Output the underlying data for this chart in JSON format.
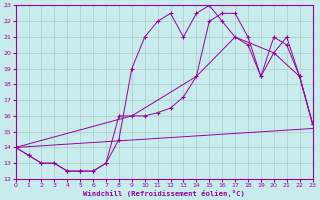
{
  "xlabel": "Windchill (Refroidissement éolien,°C)",
  "bg_color": "#c8ecec",
  "line_color": "#990099",
  "grid_color": "#aacccc",
  "xmin": 0,
  "xmax": 23,
  "ymin": 12,
  "ymax": 23,
  "line1_x": [
    0,
    1,
    2,
    3,
    4,
    5,
    6,
    7,
    8,
    9,
    10,
    11,
    12,
    13,
    14,
    15,
    16,
    17,
    18,
    19,
    20,
    21,
    22,
    23
  ],
  "line1_y": [
    14.0,
    13.5,
    13.0,
    13.0,
    12.5,
    12.5,
    12.5,
    13.0,
    14.5,
    19.0,
    21.0,
    22.0,
    22.5,
    21.0,
    22.5,
    23.0,
    22.0,
    21.0,
    20.5,
    18.5,
    21.0,
    20.5,
    18.5,
    15.5
  ],
  "line2_x": [
    0,
    1,
    2,
    3,
    4,
    5,
    6,
    7,
    8,
    9,
    10,
    11,
    12,
    13,
    14,
    15,
    16,
    17,
    18,
    19,
    20,
    21,
    22,
    23
  ],
  "line2_y": [
    14.0,
    13.5,
    13.0,
    13.0,
    12.5,
    12.5,
    12.5,
    13.0,
    16.0,
    16.0,
    16.0,
    16.2,
    16.5,
    17.2,
    18.5,
    22.0,
    22.5,
    22.5,
    21.0,
    18.5,
    20.0,
    21.0,
    18.5,
    15.5
  ],
  "line3_x": [
    0,
    9,
    14,
    17,
    20,
    22,
    23
  ],
  "line3_y": [
    14.0,
    16.0,
    18.5,
    21.0,
    20.0,
    18.5,
    15.5
  ],
  "line4_x": [
    0,
    23
  ],
  "line4_y": [
    14.0,
    15.2
  ]
}
